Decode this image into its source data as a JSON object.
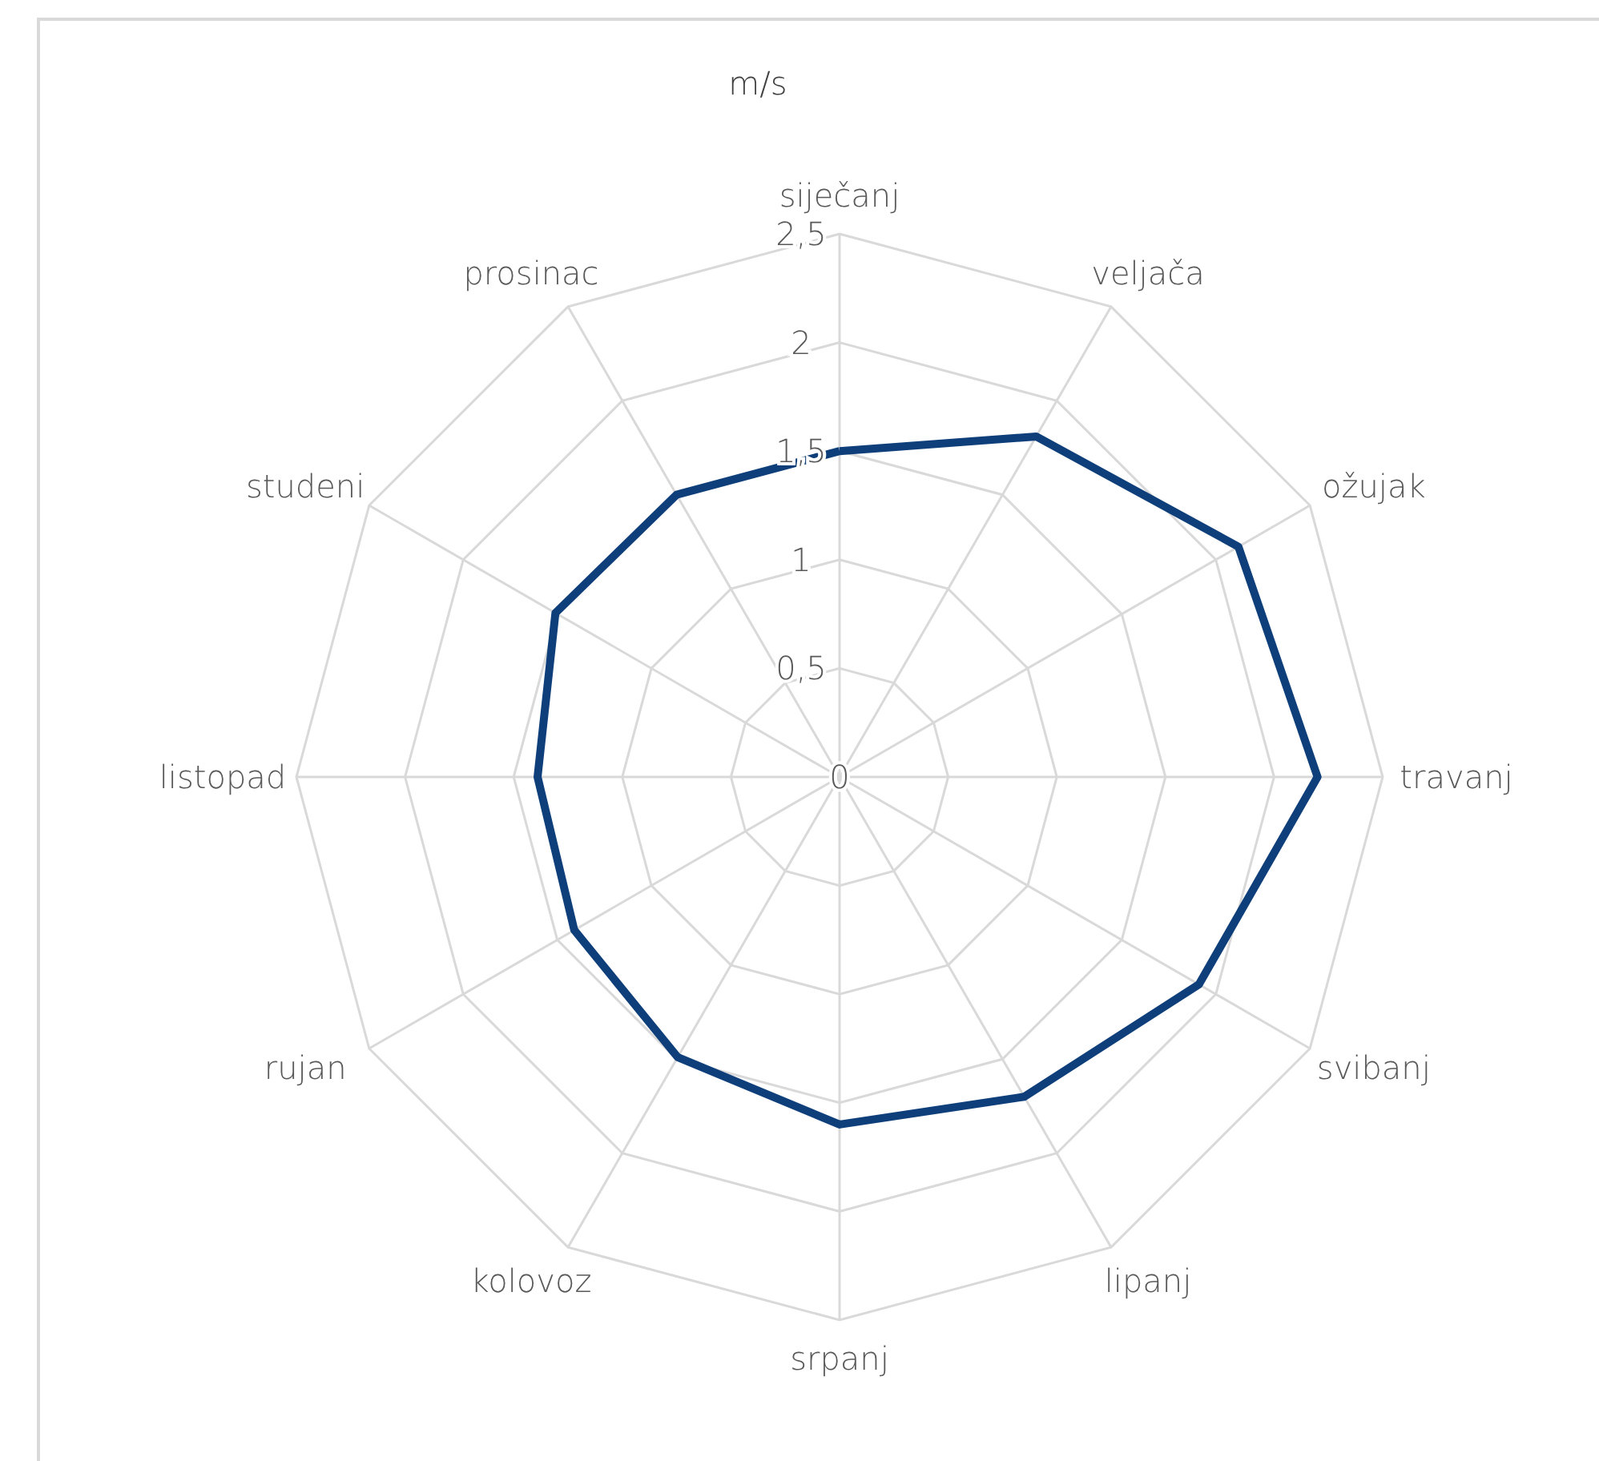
{
  "chart_data": {
    "type": "radar",
    "ylabel": "m/s",
    "categories": [
      "siječanj",
      "veljača",
      "ožujak",
      "travanj",
      "svibanj",
      "lipanj",
      "srpanj",
      "kolovoz",
      "rujan",
      "listopad",
      "studeni",
      "prosinac"
    ],
    "series": [
      {
        "color": "#0e3f7a",
        "values": [
          1.5,
          1.81,
          2.12,
          2.2,
          1.91,
          1.7,
          1.6,
          1.49,
          1.41,
          1.39,
          1.51,
          1.5
        ]
      }
    ],
    "ylim": [
      0,
      2.5
    ],
    "yticks": [
      0,
      {
        "value": 0.5,
        "label": "0,5"
      },
      1,
      {
        "value": 1.5,
        "label": "1,5"
      },
      2,
      {
        "value": 2.5,
        "label": "2,5"
      }
    ],
    "grid": true,
    "marker": "none",
    "line_style": "solid"
  }
}
